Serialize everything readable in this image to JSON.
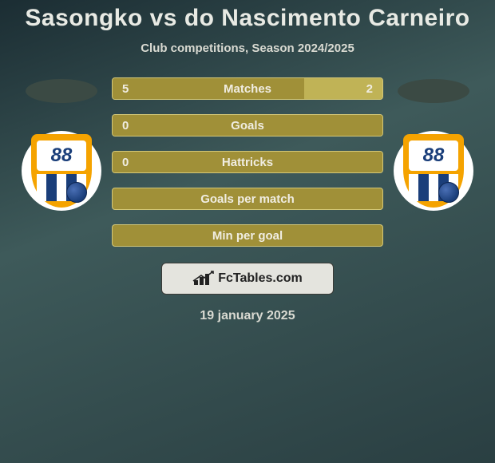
{
  "colors": {
    "bg_start": "#1b2d33",
    "bg_mid": "#3e5a5a",
    "bg_end": "#2a3f42",
    "text_light": "#e8eae4",
    "text_subtitle": "#d9dad2",
    "bar_bg": "#a09038",
    "bar_fill": "#c0b356",
    "bar_border": "#d4c878",
    "bar_text": "#f0ede2",
    "footer_bg": "#e4e4de",
    "footer_border": "#3a3a36",
    "player_shape": "#3b4a44"
  },
  "title": "Sasongko vs do Nascimento Carneiro",
  "subtitle": "Club competitions, Season 2024/2025",
  "date": "19 january 2025",
  "badge_number": "88",
  "stats": [
    {
      "label": "Matches",
      "left_val": "5",
      "right_val": "2",
      "left_pct": 71,
      "right_pct": 29
    },
    {
      "label": "Goals",
      "left_val": "0",
      "right_val": "",
      "left_pct": 100,
      "right_pct": 0
    },
    {
      "label": "Hattricks",
      "left_val": "0",
      "right_val": "",
      "left_pct": 100,
      "right_pct": 0
    },
    {
      "label": "Goals per match",
      "left_val": "",
      "right_val": "",
      "left_pct": 0,
      "right_pct": 0
    },
    {
      "label": "Min per goal",
      "left_val": "",
      "right_val": "",
      "left_pct": 0,
      "right_pct": 0
    }
  ],
  "footer_brand": "FcTables.com"
}
